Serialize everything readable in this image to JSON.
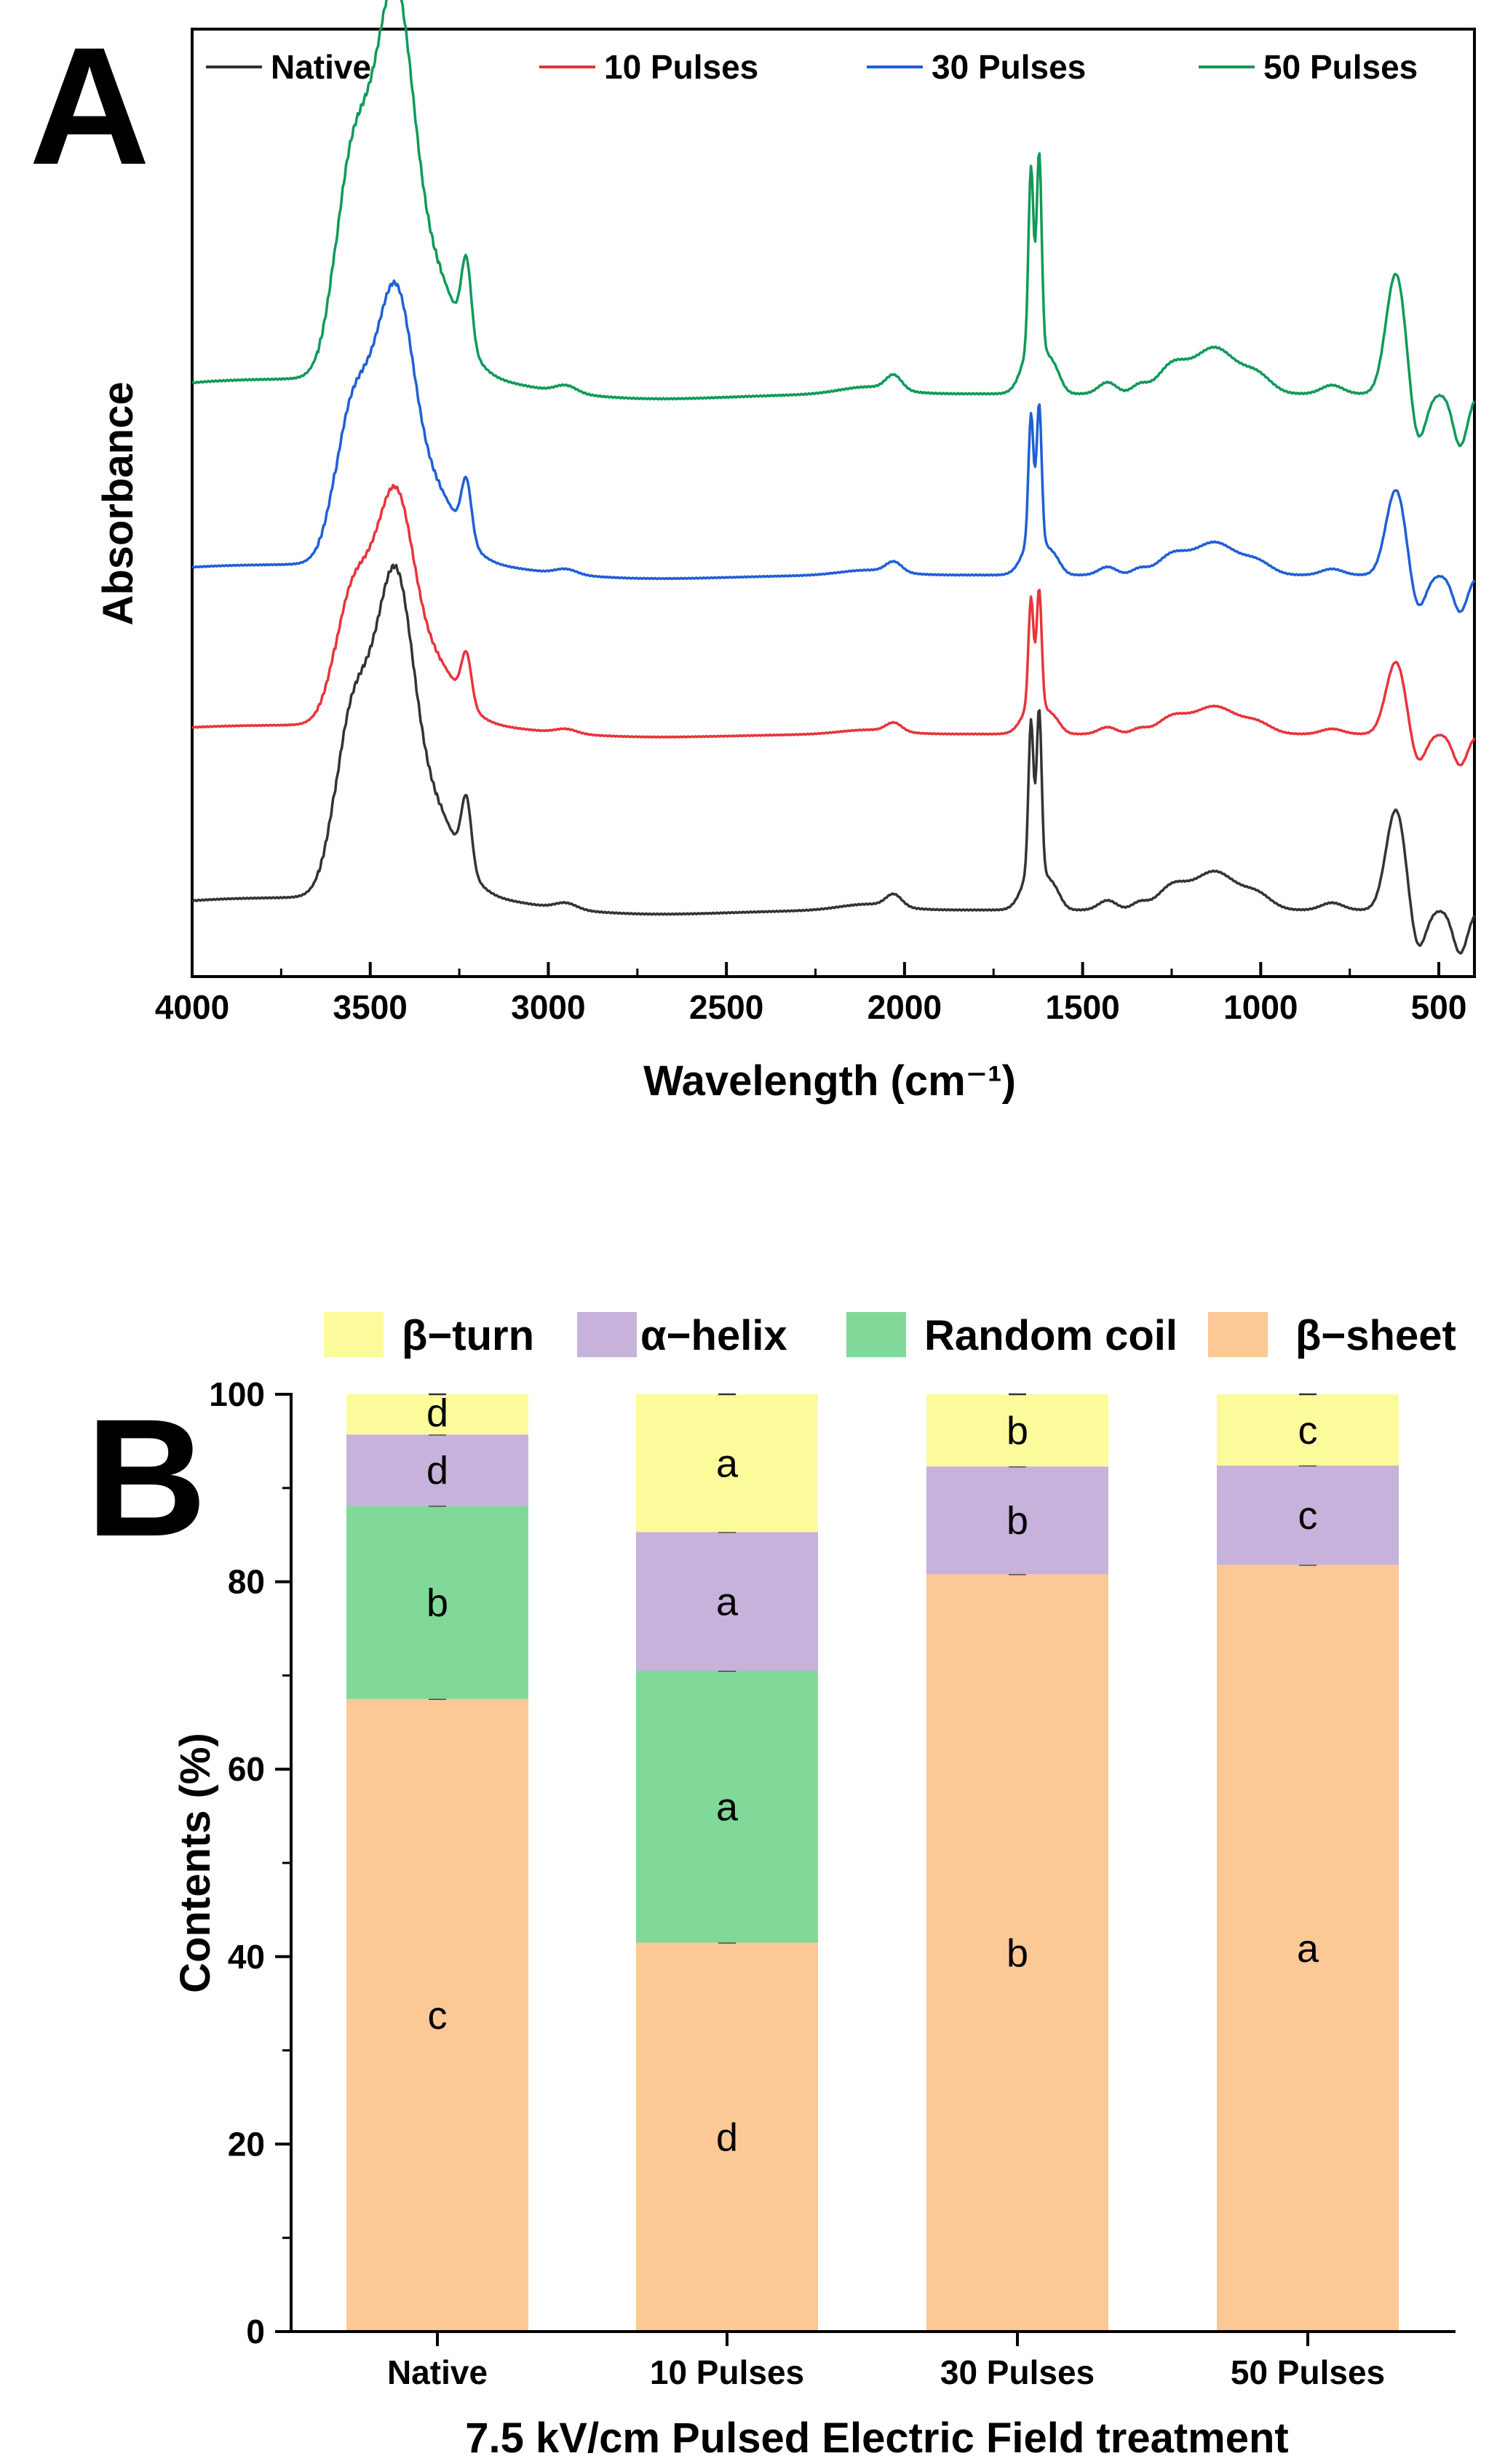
{
  "panels": {
    "a_letter": "A",
    "b_letter": "B"
  },
  "chart_data": [
    {
      "type": "line",
      "panel": "A",
      "xlabel": "Wavelength (cm⁻¹)",
      "ylabel": "Absorbance",
      "xlim": [
        4000,
        400
      ],
      "x_reversed": true,
      "x_ticks": [
        "4000",
        "3500",
        "3000",
        "2500",
        "2000",
        "1500",
        "1000",
        "500"
      ],
      "y_ticks_shown": false,
      "legend_position": "top",
      "peaks_cm1": [
        3420,
        3560,
        3230,
        1640,
        1620,
        1130,
        620
      ],
      "series": [
        {
          "name": "Native",
          "color": "#333333",
          "offset": 0
        },
        {
          "name": "10 Pulses",
          "color": "#e8343a",
          "offset": 1
        },
        {
          "name": "30 Pulses",
          "color": "#1f5fd6",
          "offset": 2
        },
        {
          "name": "50 Pulses",
          "color": "#0f9a5a",
          "offset": 3
        }
      ]
    },
    {
      "type": "bar",
      "stacked": true,
      "panel": "B",
      "xlabel": "7.5 kV/cm  Pulsed Electric Field treatment",
      "ylabel": "Contents (%)",
      "ylim": [
        0,
        100
      ],
      "y_ticks": [
        "0",
        "20",
        "40",
        "60",
        "80",
        "100"
      ],
      "categories": [
        "Native",
        "10 Pulses",
        "30 Pulses",
        "50 Pulses"
      ],
      "legend_position": "top",
      "series": [
        {
          "name": "β−sheet",
          "color": "#fbc896",
          "values": [
            67.5,
            41.5,
            80.8,
            81.8
          ],
          "letters": [
            "c",
            "d",
            "b",
            "a"
          ]
        },
        {
          "name": "Random coil",
          "color": "#80d998",
          "values": [
            20.6,
            29.0,
            0,
            0
          ],
          "letters": [
            "b",
            "a",
            "",
            ""
          ]
        },
        {
          "name": "α−helix",
          "color": "#c6b2da",
          "values": [
            7.6,
            14.8,
            11.5,
            10.6
          ],
          "letters": [
            "d",
            "a",
            "b",
            "c"
          ]
        },
        {
          "name": "β−turn",
          "color": "#fbfb9c",
          "values": [
            4.3,
            14.7,
            7.7,
            7.6
          ],
          "letters": [
            "d",
            "a",
            "b",
            "c"
          ]
        }
      ],
      "legend_order": [
        "β−turn",
        "α−helix",
        "Random coil",
        "β−sheet"
      ]
    }
  ]
}
